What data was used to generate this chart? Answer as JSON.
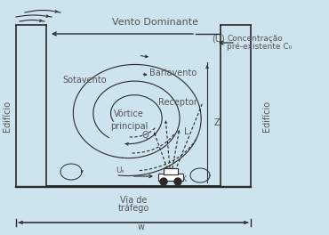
{
  "bg_color": "#cde3ee",
  "line_color": "#2a2a2a",
  "text_color": "#555555",
  "labels": {
    "vento_dominante": "Vento Dominante",
    "U": "(U)",
    "concentracao_line1": "Concentração",
    "concentracao_line2": "pré-existente C₀",
    "sotavento": "Sotavento",
    "barlavento": "Barlavento",
    "vortice": "Vórtice\nprincipal",
    "receptor": "Receptor",
    "edificio_left": "Edifício",
    "edificio_right": "Edifício",
    "Q": "Q",
    "L": "L",
    "Z": "Z",
    "X": "X",
    "Us": "Uₛ",
    "via_line1": "Via de",
    "via_line2": "tráfego",
    "w": "w"
  }
}
